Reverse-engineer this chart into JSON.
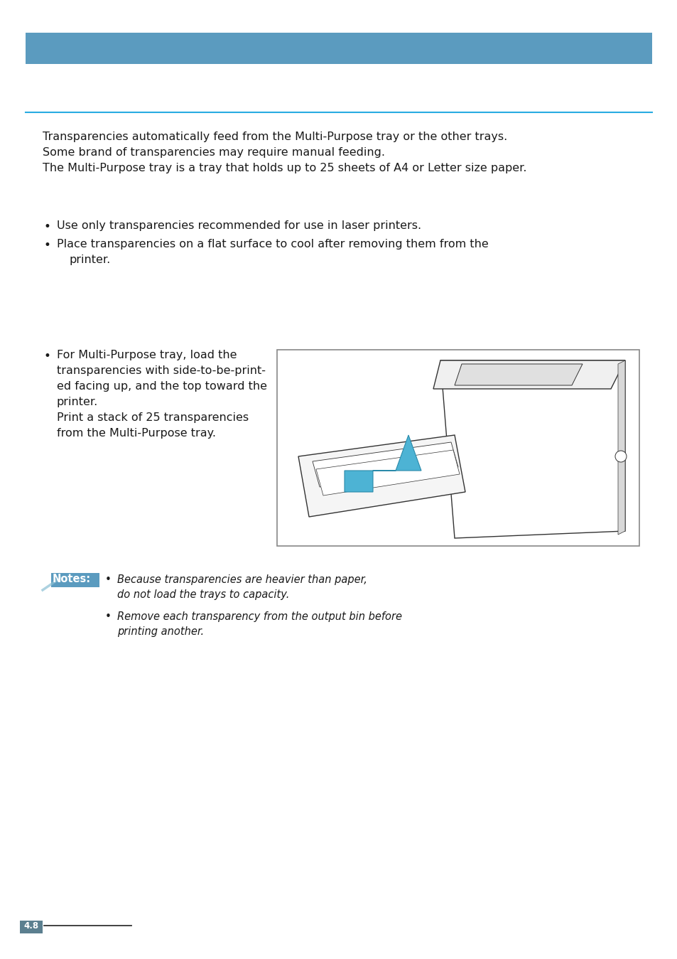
{
  "page_bg": "#ffffff",
  "header_bar_color": "#5b9bbf",
  "sep_line_color": "#29abe2",
  "body_text_color": "#1a1a1a",
  "intro_lines": [
    "Transparencies automatically feed from the Multi-Purpose tray or the other trays.",
    "Some brand of transparencies may require manual feeding.",
    "The Multi-Purpose tray is a tray that holds up to 25 sheets of A4 or Letter size paper."
  ],
  "bullet1_lines": [
    "Use only transparencies recommended for use in laser printers.",
    "Place transparencies on a flat surface to cool after removing them from the",
    "printer."
  ],
  "bullet2_text": [
    "For Multi-Purpose tray, load the",
    "transparencies with side-to-be-print-",
    "ed facing up, and the top toward the",
    "printer.",
    "Print a stack of 25 transparencies",
    "from the Multi-Purpose tray."
  ],
  "notes_text": [
    "Because transparencies are heavier than paper,",
    "do not load the trays to capacity.",
    "Remove each transparency from the output bin before",
    "printing another."
  ],
  "page_num_text": "4.8",
  "notes_label_color": "#5b9bbf",
  "image_box_border": "#888888"
}
